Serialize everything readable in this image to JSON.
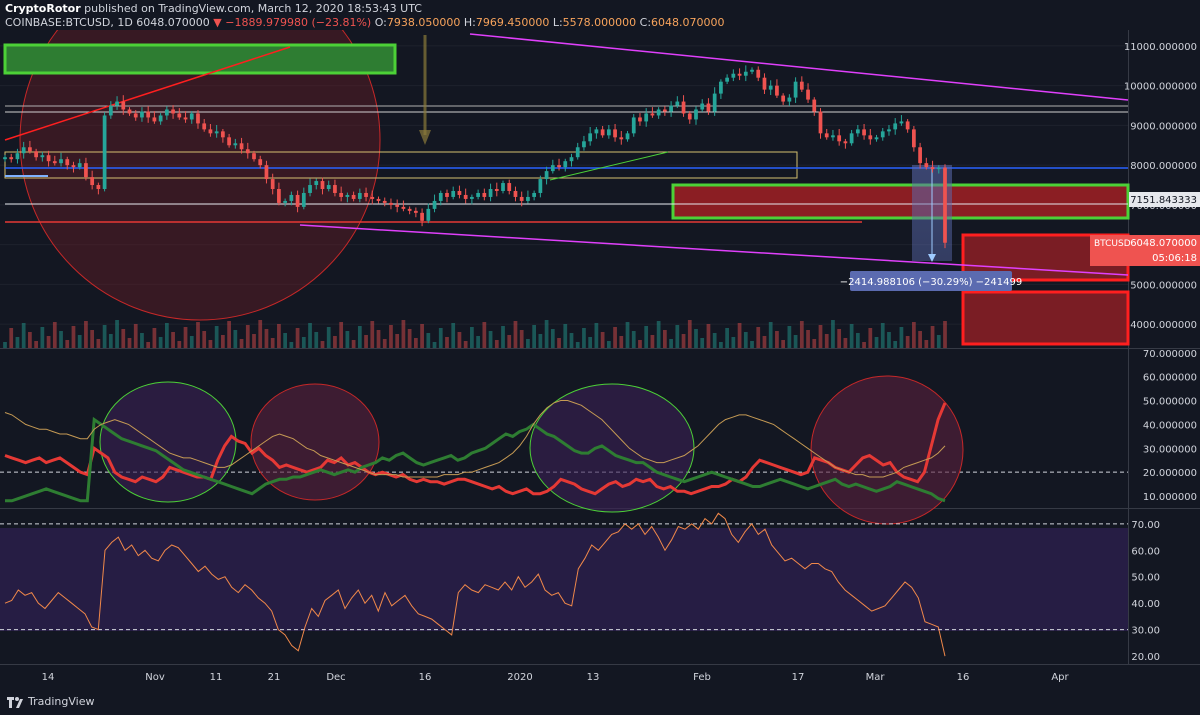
{
  "header": {
    "author": "CryptoRotor",
    "published": "published on TradingView.com, March 12, 2020 18:53:43 UTC",
    "symbol": "COINBASE:BTCUSD, 1D",
    "last": "6048.070000",
    "change": "−1889.979980 (−23.81%)",
    "o_label": "O:",
    "o": "7938.050000",
    "h_label": "H:",
    "h": "7969.450000",
    "l_label": "L:",
    "l": "5578.000000",
    "c_label": "C:",
    "c": "6048.070000"
  },
  "footer": {
    "brand": "TradingView"
  },
  "chart_data": [
    {
      "type": "candlestick",
      "title": "COINBASE:BTCUSD, 1D",
      "ylim": [
        3400,
        11400
      ],
      "price_ticks": [
        11000,
        10000,
        9000,
        8000,
        7000,
        6000,
        5000,
        4000
      ],
      "price_tick_labels": [
        "11000.000000",
        "10000.000000",
        "9000.000000",
        "8000.000000",
        "7000.000000",
        "6000.000000",
        "5000.000000",
        "4000.000000"
      ],
      "x_ticks": [
        "14",
        "Nov",
        "11",
        "21",
        "Dec",
        "16",
        "2020",
        "13",
        "Feb",
        "17",
        "Mar",
        "16",
        "Apr"
      ],
      "closes": [
        8200,
        8150,
        8300,
        8450,
        8350,
        8200,
        8250,
        8100,
        8050,
        8150,
        8000,
        7950,
        8050,
        7700,
        7500,
        7400,
        9250,
        9500,
        9600,
        9400,
        9300,
        9200,
        9350,
        9200,
        9100,
        9250,
        9400,
        9300,
        9200,
        9150,
        9300,
        9050,
        8900,
        8800,
        8850,
        8700,
        8500,
        8550,
        8400,
        8300,
        8150,
        8000,
        7650,
        7400,
        7050,
        7100,
        7250,
        6950,
        7300,
        7500,
        7600,
        7400,
        7500,
        7300,
        7200,
        7250,
        7150,
        7300,
        7200,
        7150,
        7100,
        7050,
        7000,
        6950,
        6900,
        6850,
        6800,
        6600,
        6900,
        7100,
        7300,
        7200,
        7350,
        7250,
        7150,
        7200,
        7300,
        7200,
        7400,
        7350,
        7550,
        7350,
        7200,
        7100,
        7200,
        7300,
        7650,
        7850,
        8000,
        7950,
        8100,
        8200,
        8450,
        8600,
        8800,
        8900,
        8750,
        8900,
        8700,
        8650,
        8800,
        9200,
        9100,
        9300,
        9250,
        9400,
        9350,
        9500,
        9600,
        9300,
        9150,
        9400,
        9550,
        9350,
        9800,
        10100,
        10200,
        10300,
        10250,
        10350,
        10400,
        10200,
        9900,
        10000,
        9750,
        9600,
        9700,
        10100,
        9900,
        9650,
        9350,
        8800,
        8700,
        8750,
        8600,
        8550,
        8800,
        8900,
        8750,
        8650,
        8700,
        8850,
        8900,
        9050,
        9100,
        8900,
        8450,
        8050,
        7950,
        7900,
        7938,
        6048
      ],
      "annotations": [
        {
          "label": "−2414.988106 (−30.29%) −241499"
        }
      ],
      "price_labels": [
        {
          "label": "7151.843333",
          "color": "#e6e8ed",
          "text_color": "#131722"
        },
        {
          "label": "BTCUSD",
          "value": "6048.070000",
          "timer": "05:06:18",
          "color": "#ef5350"
        }
      ]
    },
    {
      "type": "line",
      "title": "",
      "ylim": [
        5,
        72
      ],
      "y_ticks": [
        70,
        60,
        50,
        40,
        30,
        20,
        10
      ],
      "y_tick_labels": [
        "70.000000",
        "60.000000",
        "50.000000",
        "40.000000",
        "30.000000",
        "20.000000",
        "10.000000"
      ],
      "dashed_level": 20,
      "series": [
        {
          "color": "#e53935",
          "values": [
            27,
            26,
            25,
            24,
            25,
            26,
            24,
            25,
            26,
            24,
            22,
            20,
            19,
            30,
            28,
            26,
            20,
            18,
            17,
            16,
            18,
            17,
            16,
            18,
            22,
            21,
            20,
            19,
            18,
            18,
            17,
            25,
            31,
            35,
            33,
            32,
            28,
            30,
            27,
            25,
            22,
            23,
            22,
            21,
            20,
            21,
            22,
            25,
            24,
            26,
            23,
            24,
            22,
            20,
            19,
            20,
            19,
            18,
            19,
            17,
            16,
            17,
            16,
            16,
            15,
            16,
            17,
            17,
            16,
            15,
            14,
            13,
            14,
            12,
            11,
            12,
            13,
            11,
            11,
            12,
            14,
            17,
            16,
            15,
            13,
            12,
            11,
            13,
            15,
            16,
            14,
            15,
            17,
            16,
            17,
            14,
            13,
            14,
            12,
            12,
            11,
            12,
            13,
            14,
            14,
            15,
            17,
            16,
            18,
            22,
            25,
            24,
            23,
            22,
            21,
            20,
            19,
            20,
            26,
            25,
            24,
            22,
            21,
            20,
            23,
            26,
            27,
            25,
            23,
            24,
            20,
            18,
            17,
            16,
            20,
            31,
            42,
            49
          ]
        },
        {
          "color": "#2e7d32",
          "values": [
            8,
            8,
            9,
            10,
            11,
            12,
            13,
            12,
            11,
            10,
            9,
            8,
            8,
            42,
            40,
            38,
            36,
            34,
            33,
            32,
            31,
            30,
            29,
            27,
            25,
            23,
            21,
            20,
            19,
            18,
            17,
            16,
            15,
            14,
            13,
            12,
            11,
            13,
            15,
            16,
            17,
            17,
            18,
            18,
            19,
            20,
            21,
            20,
            19,
            20,
            21,
            20,
            22,
            23,
            24,
            26,
            25,
            27,
            28,
            26,
            24,
            23,
            24,
            25,
            26,
            27,
            25,
            26,
            28,
            29,
            30,
            32,
            34,
            36,
            35,
            37,
            38,
            40,
            38,
            36,
            35,
            33,
            31,
            29,
            28,
            28,
            30,
            31,
            29,
            27,
            26,
            25,
            24,
            24,
            22,
            20,
            19,
            18,
            17,
            16,
            17,
            18,
            19,
            20,
            19,
            18,
            17,
            16,
            15,
            14,
            14,
            15,
            16,
            17,
            16,
            15,
            14,
            13,
            14,
            15,
            16,
            17,
            15,
            14,
            15,
            14,
            13,
            12,
            13,
            14,
            16,
            15,
            14,
            13,
            12,
            11,
            9,
            8
          ]
        },
        {
          "color": "#c59a54",
          "values": [
            45,
            44,
            42,
            40,
            39,
            38,
            38,
            37,
            36,
            36,
            35,
            34,
            34,
            38,
            40,
            41,
            42,
            41,
            40,
            38,
            36,
            34,
            32,
            30,
            28,
            27,
            26,
            26,
            25,
            24,
            23,
            22,
            22,
            23,
            25,
            27,
            29,
            31,
            33,
            35,
            36,
            35,
            34,
            32,
            30,
            29,
            27,
            26,
            25,
            24,
            23,
            22,
            21,
            20,
            19,
            19,
            19,
            19,
            18,
            18,
            18,
            18,
            18,
            18,
            19,
            19,
            19,
            20,
            20,
            21,
            22,
            23,
            24,
            26,
            28,
            31,
            35,
            40,
            44,
            47,
            49,
            50,
            50,
            49,
            48,
            46,
            44,
            42,
            39,
            36,
            33,
            30,
            28,
            26,
            25,
            24,
            24,
            25,
            26,
            27,
            29,
            31,
            34,
            37,
            40,
            42,
            43,
            44,
            44,
            43,
            42,
            41,
            40,
            38,
            36,
            34,
            32,
            30,
            28,
            26,
            24,
            22,
            21,
            20,
            19,
            19,
            18,
            18,
            18,
            19,
            20,
            22,
            23,
            24,
            25,
            26,
            28,
            31
          ]
        }
      ]
    },
    {
      "type": "line",
      "title": "",
      "ylim": [
        17,
        76
      ],
      "y_ticks": [
        70,
        60,
        50,
        40,
        30,
        20
      ],
      "y_tick_labels": [
        "70.00",
        "60.00",
        "50.00",
        "40.00",
        "30.00",
        "20.00"
      ],
      "dashed_levels": [
        70,
        30
      ],
      "series": [
        {
          "color": "#f0884a",
          "values": [
            40,
            41,
            45,
            43,
            44,
            40,
            38,
            41,
            44,
            42,
            40,
            38,
            36,
            31,
            30,
            60,
            63,
            65,
            60,
            62,
            58,
            60,
            57,
            56,
            60,
            62,
            61,
            58,
            55,
            52,
            54,
            51,
            49,
            50,
            46,
            44,
            47,
            45,
            42,
            40,
            37,
            30,
            28,
            24,
            22,
            31,
            38,
            35,
            41,
            43,
            45,
            38,
            42,
            45,
            40,
            43,
            37,
            44,
            39,
            41,
            43,
            39,
            36,
            35,
            34,
            32,
            30,
            28,
            44,
            47,
            45,
            44,
            47,
            46,
            45,
            48,
            45,
            50,
            46,
            48,
            51,
            45,
            43,
            44,
            40,
            39,
            53,
            57,
            62,
            60,
            63,
            66,
            67,
            70,
            68,
            70,
            66,
            69,
            65,
            60,
            64,
            69,
            68,
            70,
            68,
            72,
            70,
            74,
            72,
            66,
            63,
            67,
            70,
            66,
            68,
            62,
            59,
            56,
            57,
            55,
            53,
            55,
            55,
            53,
            52,
            48,
            45,
            43,
            41,
            39,
            37,
            38,
            39,
            42,
            45,
            48,
            46,
            42,
            33,
            32,
            31,
            20
          ]
        }
      ]
    }
  ]
}
